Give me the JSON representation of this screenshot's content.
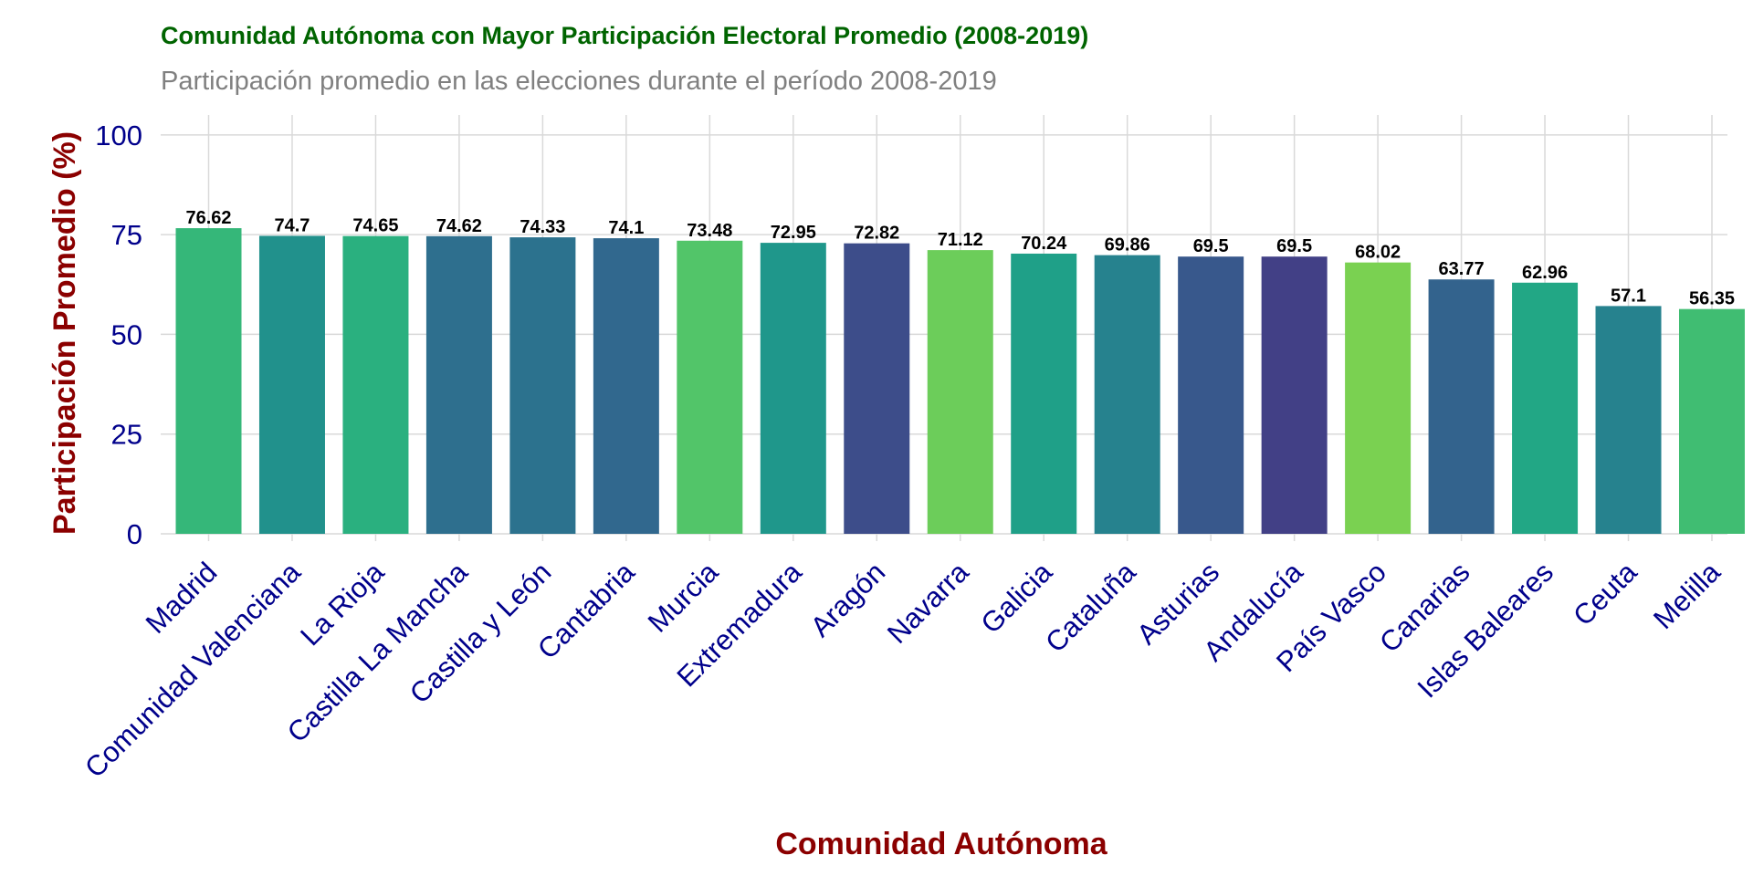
{
  "chart_data": {
    "type": "bar",
    "title": "Comunidad Autónoma con Mayor Participación Electoral Promedio (2008-2019)",
    "subtitle": "Participación promedio en las elecciones durante el período 2008-2019",
    "xlabel": "Comunidad Autónoma",
    "ylabel": "Participación Promedio (%)",
    "ylim": [
      0,
      105
    ],
    "yticks": [
      0,
      25,
      50,
      75,
      100
    ],
    "grid": true,
    "legend": "none",
    "categories": [
      "Madrid",
      "Comunidad Valenciana",
      "La Rioja",
      "Castilla La Mancha",
      "Castilla y León",
      "Cantabria",
      "Murcia",
      "Extremadura",
      "Aragón",
      "Navarra",
      "Galicia",
      "Cataluña",
      "Asturias",
      "Andalucía",
      "País Vasco",
      "Canarias",
      "Islas Baleares",
      "Ceuta",
      "Melilla"
    ],
    "values": [
      76.62,
      74.7,
      74.65,
      74.62,
      74.33,
      74.1,
      73.48,
      72.95,
      72.82,
      71.12,
      70.24,
      69.86,
      69.5,
      69.5,
      68.02,
      63.77,
      62.96,
      57.1,
      56.35
    ],
    "data_labels": [
      "76.62",
      "74.7",
      "74.65",
      "74.62",
      "74.33",
      "74.1",
      "73.48",
      "72.95",
      "72.82",
      "71.12",
      "70.24",
      "69.86",
      "69.5",
      "69.5",
      "68.02",
      "63.77",
      "62.96",
      "57.1",
      "56.35"
    ],
    "colors": [
      "#35b779",
      "#21918c",
      "#2ab07f",
      "#2e6f8e",
      "#2c728e",
      "#31688e",
      "#52c569",
      "#1f978b",
      "#3d4d8a",
      "#6ccd5a",
      "#1fa088",
      "#26828e",
      "#38588c",
      "#424086",
      "#7ad151",
      "#33638d",
      "#22a785",
      "#26828e",
      "#40bd72"
    ]
  }
}
